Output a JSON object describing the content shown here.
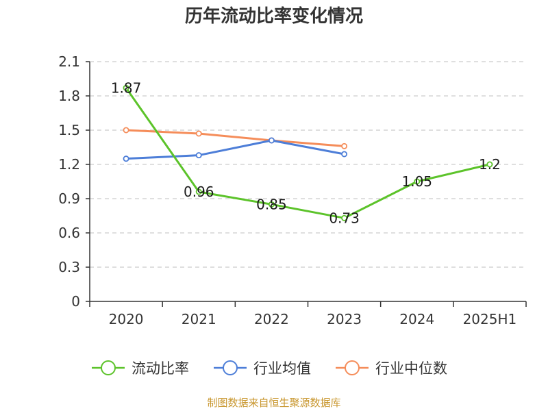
{
  "title": "历年流动比率变化情况",
  "source": "制图数据来自恒生聚源数据库",
  "chart_data": {
    "type": "line",
    "categories": [
      "2020",
      "2021",
      "2022",
      "2023",
      "2024",
      "2025H1"
    ],
    "ylim": [
      0,
      2.1
    ],
    "yticks": [
      "0",
      "0.3",
      "0.6",
      "0.9",
      "1.2",
      "1.5",
      "1.8",
      "2.1"
    ],
    "grid": true,
    "legend_position": "bottom",
    "series": [
      {
        "name": "流动比率",
        "color": "#5cc32a",
        "values": [
          1.87,
          0.96,
          0.85,
          0.73,
          1.05,
          1.2
        ],
        "labels": [
          "1.87",
          "0.96",
          "0.85",
          "0.73",
          "1.05",
          "1.2"
        ]
      },
      {
        "name": "行业均值",
        "color": "#4d7ed8",
        "values": [
          1.25,
          1.28,
          1.41,
          1.29,
          null,
          null
        ]
      },
      {
        "name": "行业中位数",
        "color": "#f58d5a",
        "values": [
          1.5,
          1.47,
          1.41,
          1.36,
          null,
          null
        ]
      }
    ]
  }
}
